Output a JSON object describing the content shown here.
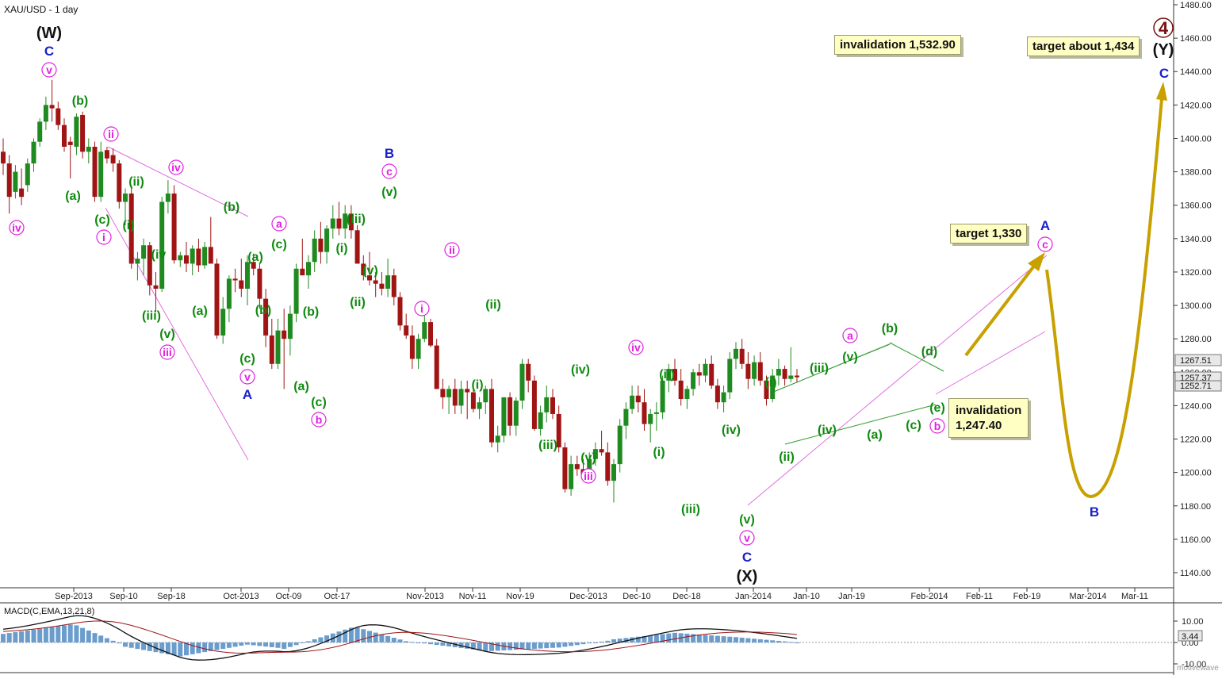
{
  "header": {
    "title": "XAU/USD - 1 day"
  },
  "watermark": "motivewave",
  "colors": {
    "up": "#1f8a1f",
    "down": "#a01414",
    "green_label": "#0f8a0f",
    "magenta": "#e020e0",
    "blue": "#1a20c8",
    "darkred": "#7a1010",
    "target_arrow": "#c8a000",
    "trend": "#e060e0"
  },
  "price_axis": {
    "ticks": [
      "1480.00",
      "1460.00",
      "1440.00",
      "1420.00",
      "1400.00",
      "1380.00",
      "1360.00",
      "1340.00",
      "1320.00",
      "1300.00",
      "1280.00",
      "1260.00",
      "1240.00",
      "1220.00",
      "1200.00",
      "1180.00",
      "1160.00",
      "1140.00"
    ],
    "current_labels": [
      "1267.51",
      "1257.37",
      "1252.71"
    ]
  },
  "date_axis": {
    "labels": [
      "Sep-2013",
      "Sep-10",
      "Sep-18",
      "Oct-2013",
      "Oct-09",
      "Oct-17",
      "Nov-2013",
      "Nov-11",
      "Nov-19",
      "Dec-2013",
      "Dec-10",
      "Dec-18",
      "Jan-2014",
      "Jan-10",
      "Jan-19",
      "Feb-2014",
      "Feb-11",
      "Feb-19",
      "Mar-2014",
      "Mar-11"
    ]
  },
  "notes": {
    "invalidation_top": "invalidation 1,532.90",
    "target_1434": "target about 1,434",
    "target_1330": "target 1,330",
    "invalidation_low_1": "invalidation",
    "invalidation_low_2": "1,247.40"
  },
  "macd": {
    "title": "MACD(C,EMA,13,21,8)",
    "ticks": [
      "10.00",
      "0.00",
      "-10.00"
    ],
    "current": "3.44"
  },
  "chart_data": {
    "type": "candlestick",
    "title": "XAU/USD - 1 day",
    "ylim": [
      1130,
      1485
    ],
    "series_ohlc": [
      [
        1392,
        1400,
        1378,
        1385
      ],
      [
        1385,
        1390,
        1355,
        1365
      ],
      [
        1368,
        1384,
        1364,
        1380
      ],
      [
        1370,
        1382,
        1360,
        1365
      ],
      [
        1372,
        1388,
        1368,
        1385
      ],
      [
        1385,
        1400,
        1380,
        1398
      ],
      [
        1398,
        1412,
        1395,
        1410
      ],
      [
        1410,
        1425,
        1405,
        1420
      ],
      [
        1420,
        1435,
        1410,
        1418
      ],
      [
        1418,
        1422,
        1405,
        1408
      ],
      [
        1408,
        1412,
        1392,
        1395
      ],
      [
        1398,
        1401,
        1376,
        1396
      ],
      [
        1395,
        1415,
        1390,
        1413
      ],
      [
        1414,
        1416,
        1388,
        1392
      ],
      [
        1392,
        1400,
        1385,
        1395
      ],
      [
        1395,
        1398,
        1362,
        1365
      ],
      [
        1365,
        1398,
        1362,
        1392
      ],
      [
        1393,
        1395,
        1385,
        1388
      ],
      [
        1390,
        1394,
        1380,
        1385
      ],
      [
        1385,
        1387,
        1358,
        1362
      ],
      [
        1362,
        1370,
        1348,
        1367
      ],
      [
        1367,
        1372,
        1322,
        1325
      ],
      [
        1325,
        1332,
        1315,
        1328
      ],
      [
        1328,
        1340,
        1318,
        1336
      ],
      [
        1336,
        1338,
        1306,
        1312
      ],
      [
        1312,
        1320,
        1296,
        1310
      ],
      [
        1310,
        1365,
        1308,
        1362
      ],
      [
        1362,
        1375,
        1355,
        1367
      ],
      [
        1367,
        1372,
        1325,
        1327
      ],
      [
        1327,
        1332,
        1323,
        1330
      ],
      [
        1330,
        1338,
        1320,
        1325
      ],
      [
        1325,
        1336,
        1318,
        1334
      ],
      [
        1334,
        1340,
        1320,
        1324
      ],
      [
        1324,
        1338,
        1322,
        1335
      ],
      [
        1335,
        1353,
        1330,
        1325
      ],
      [
        1325,
        1328,
        1280,
        1282
      ],
      [
        1282,
        1305,
        1277,
        1298
      ],
      [
        1298,
        1318,
        1290,
        1316
      ],
      [
        1316,
        1322,
        1308,
        1315
      ],
      [
        1315,
        1328,
        1305,
        1310
      ],
      [
        1310,
        1330,
        1300,
        1326
      ],
      [
        1326,
        1331,
        1318,
        1322
      ],
      [
        1322,
        1325,
        1298,
        1304
      ],
      [
        1304,
        1310,
        1275,
        1282
      ],
      [
        1282,
        1292,
        1262,
        1265
      ],
      [
        1265,
        1292,
        1262,
        1285
      ],
      [
        1285,
        1298,
        1250,
        1280
      ],
      [
        1280,
        1300,
        1270,
        1295
      ],
      [
        1295,
        1325,
        1290,
        1322
      ],
      [
        1322,
        1340,
        1318,
        1318
      ],
      [
        1318,
        1330,
        1310,
        1326
      ],
      [
        1326,
        1345,
        1320,
        1340
      ],
      [
        1340,
        1350,
        1325,
        1332
      ],
      [
        1332,
        1348,
        1325,
        1346
      ],
      [
        1346,
        1360,
        1340,
        1352
      ],
      [
        1352,
        1362,
        1342,
        1346
      ],
      [
        1346,
        1360,
        1340,
        1355
      ],
      [
        1355,
        1360,
        1340,
        1345
      ],
      [
        1345,
        1348,
        1325,
        1325
      ],
      [
        1325,
        1330,
        1315,
        1318
      ],
      [
        1318,
        1332,
        1312,
        1315
      ],
      [
        1315,
        1320,
        1305,
        1313
      ],
      [
        1313,
        1320,
        1306,
        1310
      ],
      [
        1310,
        1328,
        1305,
        1318
      ],
      [
        1318,
        1322,
        1300,
        1305
      ],
      [
        1305,
        1308,
        1285,
        1288
      ],
      [
        1288,
        1295,
        1280,
        1282
      ],
      [
        1282,
        1288,
        1262,
        1268
      ],
      [
        1268,
        1283,
        1262,
        1280
      ],
      [
        1280,
        1295,
        1278,
        1290
      ],
      [
        1290,
        1292,
        1275,
        1276
      ],
      [
        1276,
        1280,
        1250,
        1250
      ],
      [
        1250,
        1256,
        1238,
        1245
      ],
      [
        1245,
        1252,
        1235,
        1250
      ],
      [
        1250,
        1256,
        1235,
        1240
      ],
      [
        1240,
        1255,
        1235,
        1250
      ],
      [
        1250,
        1255,
        1232,
        1248
      ],
      [
        1248,
        1250,
        1236,
        1238
      ],
      [
        1238,
        1245,
        1232,
        1242
      ],
      [
        1242,
        1252,
        1235,
        1250
      ],
      [
        1250,
        1256,
        1215,
        1218
      ],
      [
        1218,
        1228,
        1212,
        1222
      ],
      [
        1222,
        1245,
        1218,
        1245
      ],
      [
        1245,
        1248,
        1222,
        1228
      ],
      [
        1228,
        1245,
        1222,
        1243
      ],
      [
        1243,
        1268,
        1238,
        1265
      ],
      [
        1265,
        1268,
        1248,
        1255
      ],
      [
        1255,
        1258,
        1225,
        1226
      ],
      [
        1226,
        1240,
        1222,
        1236
      ],
      [
        1236,
        1252,
        1230,
        1245
      ],
      [
        1245,
        1250,
        1232,
        1235
      ],
      [
        1235,
        1240,
        1212,
        1215
      ],
      [
        1215,
        1218,
        1188,
        1190
      ],
      [
        1190,
        1210,
        1186,
        1205
      ],
      [
        1205,
        1210,
        1198,
        1202
      ],
      [
        1202,
        1208,
        1195,
        1198
      ],
      [
        1198,
        1212,
        1195,
        1208
      ],
      [
        1208,
        1218,
        1204,
        1214
      ],
      [
        1214,
        1225,
        1210,
        1212
      ],
      [
        1212,
        1218,
        1192,
        1195
      ],
      [
        1195,
        1208,
        1182,
        1205
      ],
      [
        1205,
        1232,
        1200,
        1228
      ],
      [
        1228,
        1242,
        1220,
        1238
      ],
      [
        1238,
        1252,
        1235,
        1246
      ],
      [
        1246,
        1252,
        1236,
        1242
      ],
      [
        1242,
        1250,
        1225,
        1229
      ],
      [
        1229,
        1238,
        1218,
        1235
      ],
      [
        1235,
        1242,
        1225,
        1236
      ],
      [
        1236,
        1258,
        1232,
        1255
      ],
      [
        1255,
        1265,
        1248,
        1262
      ],
      [
        1262,
        1268,
        1252,
        1255
      ],
      [
        1255,
        1262,
        1240,
        1244
      ],
      [
        1244,
        1252,
        1238,
        1250
      ],
      [
        1250,
        1262,
        1246,
        1260
      ],
      [
        1260,
        1265,
        1252,
        1258
      ],
      [
        1258,
        1268,
        1254,
        1265
      ],
      [
        1265,
        1270,
        1250,
        1252
      ],
      [
        1252,
        1256,
        1238,
        1242
      ],
      [
        1242,
        1252,
        1236,
        1248
      ],
      [
        1248,
        1272,
        1244,
        1268
      ],
      [
        1268,
        1278,
        1262,
        1274
      ],
      [
        1274,
        1280,
        1262,
        1265
      ],
      [
        1265,
        1272,
        1250,
        1256
      ],
      [
        1256,
        1270,
        1252,
        1266
      ],
      [
        1266,
        1272,
        1252,
        1255
      ],
      [
        1255,
        1258,
        1240,
        1244
      ],
      [
        1244,
        1262,
        1242,
        1258
      ],
      [
        1258,
        1268,
        1252,
        1262
      ],
      [
        1262,
        1264,
        1252,
        1256
      ],
      [
        1256,
        1275,
        1254,
        1258
      ],
      [
        1258,
        1262,
        1254,
        1257
      ]
    ]
  }
}
